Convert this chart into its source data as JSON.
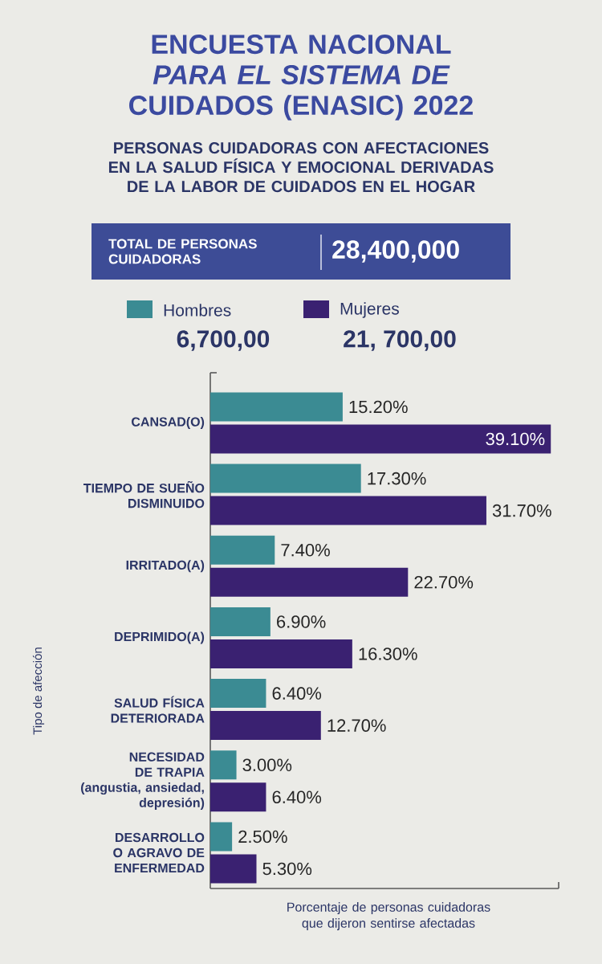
{
  "chart_data": {
    "type": "bar",
    "orientation": "horizontal",
    "title": "ENCUESTA NACIONAL *PARA EL SISTEMA DE* CUIDADOS (ENASIC) 2022",
    "subtitle": "PERSONAS CUIDADORAS CON AFECTACIONES EN LA SALUD FÍSICA Y EMOCIONAL DERIVADAS DE LA LABOR DE CUIDADOS EN EL HOGAR",
    "ylabel": "Tipo de afección",
    "xlabel": "Porcentaje de personas cuidadoras que dijeron sentirse afectadas",
    "annotations": [
      "TOTAL DE PERSONAS CUIDADORAS",
      "28,400,000",
      "6,700,00",
      "21, 700,00"
    ],
    "categories": [
      "CANSAD(O)",
      "TIEMPO DE SUEÑO DISMINUIDO",
      "IRRITADO(A)",
      "DEPRIMIDO(A)",
      "SALUD FÍSICA DETERIORADA",
      "NECESIDAD DE TRAPIA (angustia, ansiedad, depresión)",
      "DESARROLLO O AGRAVO DE ENFERMEDAD"
    ],
    "series": [
      {
        "name": "Hombres",
        "color": "#3b8b93",
        "values": [
          15.2,
          17.3,
          7.4,
          6.9,
          6.4,
          3.0,
          2.5
        ],
        "value_labels": [
          "15.20%",
          "17.30%",
          "7.40%",
          "6.90%",
          "6.40%",
          "3.00%",
          "2.50%"
        ]
      },
      {
        "name": "Mujeres",
        "color": "#3a2171",
        "values": [
          39.1,
          31.7,
          22.7,
          16.3,
          12.7,
          6.4,
          5.3
        ],
        "value_labels": [
          "39.10%",
          "31.70%",
          "22.70%",
          "16.30%",
          "12.70%",
          "6.40%",
          "5.30%"
        ]
      }
    ],
    "xlim": [
      0,
      40
    ],
    "legend": "top"
  }
}
